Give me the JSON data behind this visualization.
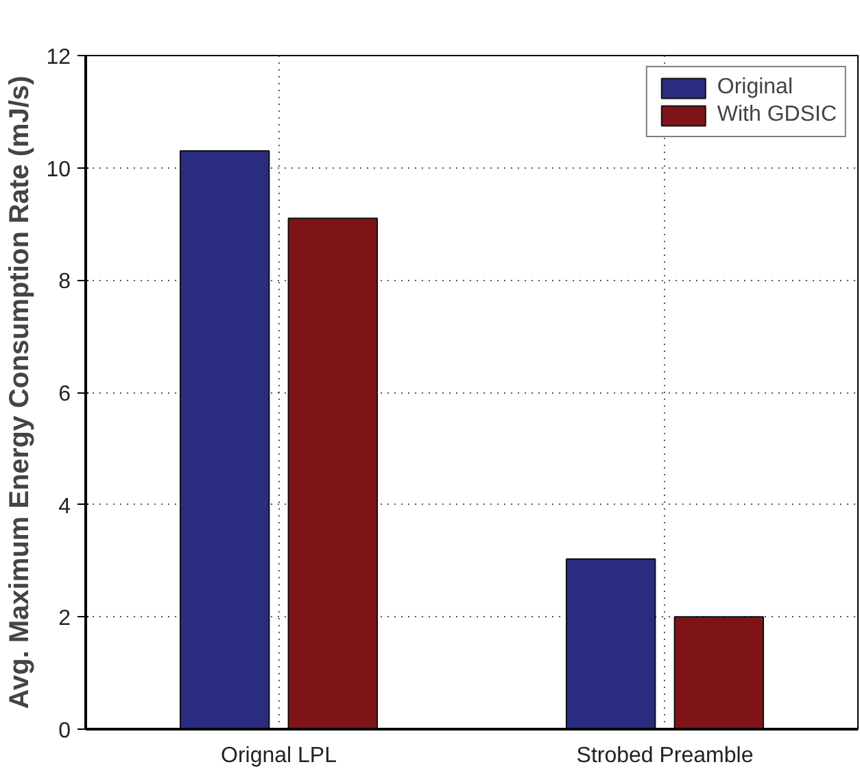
{
  "chart_data": {
    "type": "bar",
    "ylabel": "Avg. Maximum Energy Consumption Rate (mJ/s)",
    "categories": [
      "Orignal LPL",
      "Strobed Preamble"
    ],
    "series": [
      {
        "name": "Original",
        "color": "#292c7f",
        "values": [
          10.3,
          3.03
        ]
      },
      {
        "name": "With GDSIC",
        "color": "#7f1418",
        "values": [
          9.1,
          2.0
        ]
      }
    ],
    "ylim": [
      0,
      12
    ],
    "yticks": [
      0,
      2,
      4,
      6,
      8,
      10,
      12
    ],
    "grid": true,
    "legend": "top right"
  }
}
